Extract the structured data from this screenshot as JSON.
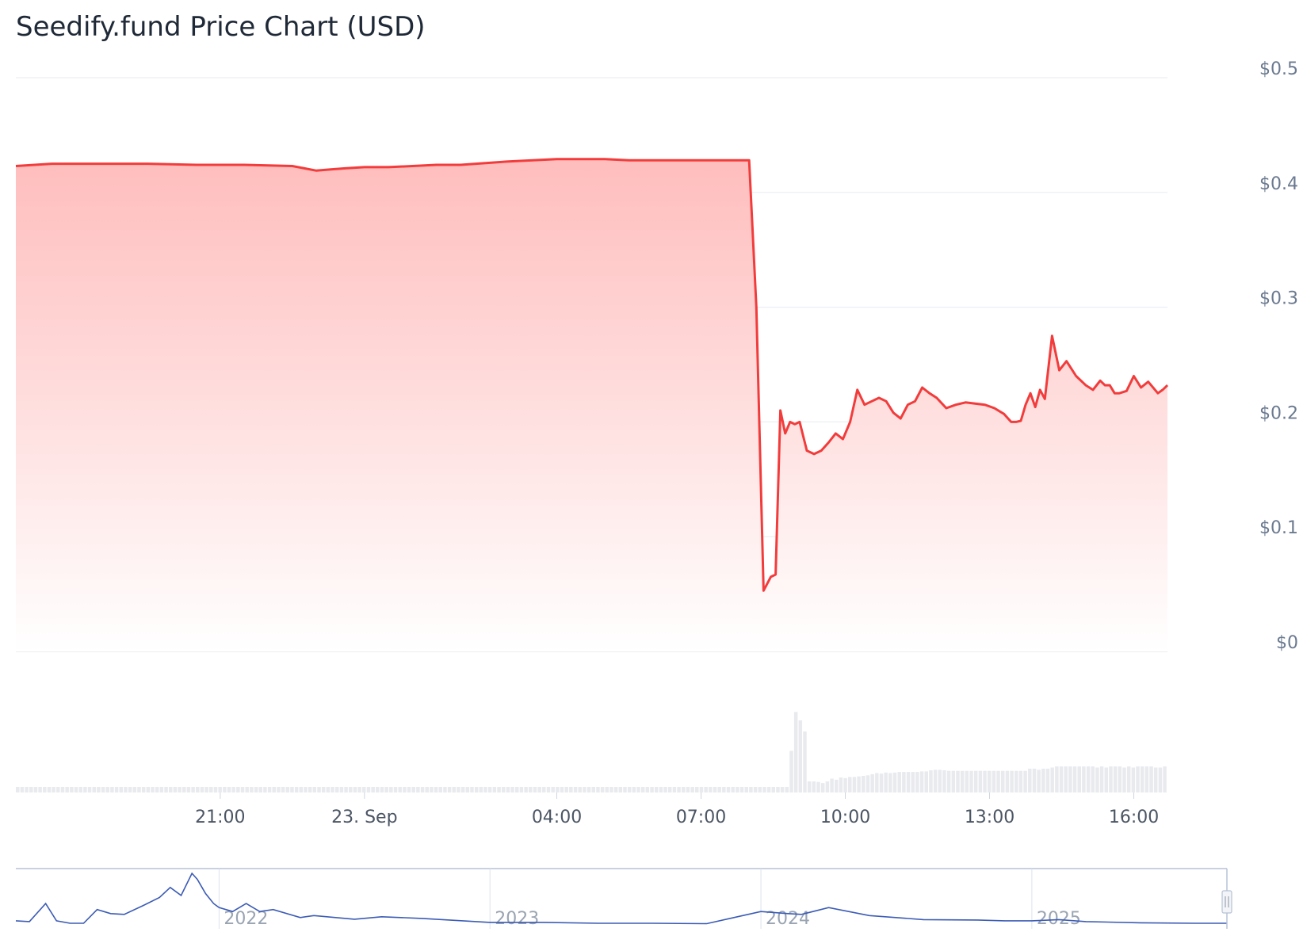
{
  "chart_data": {
    "type": "area",
    "title": "Seedify.fund Price Chart (USD)",
    "xlabel": "",
    "ylabel": "",
    "ylim": [
      0,
      0.5
    ],
    "y_ticks": [
      "$0",
      "$0.1",
      "$0.2",
      "$0.3",
      "$0.4",
      "$0.5"
    ],
    "y_tick_values": [
      0,
      0.1,
      0.2,
      0.3,
      0.4,
      0.5
    ],
    "x_ticks": [
      "21:00",
      "23. Sep",
      "04:00",
      "07:00",
      "10:00",
      "13:00",
      "16:00"
    ],
    "x_tick_hours": [
      21,
      24,
      28,
      31,
      34,
      37,
      40
    ],
    "x_range_hours": [
      16.75,
      40.7
    ],
    "grid": true,
    "legend": "none",
    "colors": {
      "line": "#f23c3c",
      "area_top": "#ffbdbd",
      "volume": "#e8eaee",
      "navigator": "#3b5bb5"
    },
    "series": [
      {
        "values_x_hours": [
          16.75,
          17.5,
          18.5,
          19.5,
          20.5,
          21.5,
          22.5,
          23.0,
          23.3,
          23.6,
          24.0,
          24.5,
          25.0,
          25.5,
          26.0,
          27.0,
          28.0,
          29.0,
          29.5,
          30.0,
          30.5,
          31.0,
          31.5,
          32.0,
          32.15,
          32.3,
          32.45,
          32.55,
          32.65,
          32.75,
          32.85,
          32.95,
          33.05,
          33.2,
          33.35,
          33.5,
          33.65,
          33.8,
          33.95,
          34.0,
          34.1,
          34.25,
          34.4,
          34.55,
          34.7,
          34.85,
          35.0,
          35.15,
          35.3,
          35.45,
          35.6,
          35.75,
          35.9,
          36.1,
          36.3,
          36.5,
          36.7,
          36.9,
          37.1,
          37.3,
          37.45,
          37.55,
          37.65,
          37.75,
          37.85,
          37.95,
          38.05,
          38.15,
          38.3,
          38.45,
          38.6,
          38.8,
          39.0,
          39.15,
          39.3,
          39.4,
          39.5,
          39.6,
          39.7,
          39.85,
          40.0,
          40.15,
          40.3,
          40.5,
          40.6,
          40.7
        ],
        "values": [
          0.423,
          0.425,
          0.425,
          0.425,
          0.424,
          0.424,
          0.423,
          0.419,
          0.42,
          0.421,
          0.422,
          0.422,
          0.423,
          0.424,
          0.424,
          0.427,
          0.429,
          0.429,
          0.428,
          0.428,
          0.428,
          0.428,
          0.428,
          0.428,
          0.3,
          0.053,
          0.065,
          0.067,
          0.21,
          0.19,
          0.2,
          0.198,
          0.2,
          0.175,
          0.172,
          0.175,
          0.182,
          0.19,
          0.185,
          0.19,
          0.2,
          0.228,
          0.215,
          0.218,
          0.221,
          0.218,
          0.208,
          0.203,
          0.215,
          0.218,
          0.23,
          0.225,
          0.221,
          0.212,
          0.215,
          0.217,
          0.216,
          0.215,
          0.212,
          0.207,
          0.2,
          0.2,
          0.201,
          0.215,
          0.225,
          0.213,
          0.228,
          0.22,
          0.275,
          0.245,
          0.253,
          0.24,
          0.232,
          0.228,
          0.236,
          0.232,
          0.232,
          0.225,
          0.225,
          0.227,
          0.24,
          0.23,
          0.235,
          0.225,
          0.228,
          0.232
        ]
      }
    ],
    "volume_relative": [
      1,
      1,
      1,
      1,
      1,
      1,
      1,
      1,
      1,
      1,
      1,
      1,
      1,
      1,
      1,
      1,
      1,
      1,
      1,
      1,
      1,
      1,
      1,
      1,
      1,
      1,
      1,
      1,
      1,
      1,
      1,
      1,
      1,
      1,
      1,
      1,
      1,
      1,
      1,
      1,
      1,
      1,
      1,
      1,
      1,
      1,
      1,
      1,
      1,
      1,
      1,
      1,
      1,
      1,
      1,
      1,
      1,
      1,
      1,
      1,
      1,
      1,
      1,
      1,
      1,
      1,
      1,
      1,
      1,
      1,
      1,
      1,
      1,
      1,
      1,
      1,
      1,
      1,
      1,
      1,
      1,
      1,
      1,
      1,
      1,
      1,
      1,
      1,
      1,
      1,
      1,
      1,
      1,
      1,
      1,
      1,
      1,
      1,
      1,
      1,
      1,
      1,
      1,
      1,
      1,
      1,
      1,
      1,
      1,
      1,
      1,
      1,
      1,
      1,
      1,
      1,
      1,
      1,
      1,
      1,
      1,
      1,
      1,
      1,
      1,
      1,
      1,
      1,
      1,
      1,
      1,
      1,
      1,
      1,
      1,
      1,
      1,
      1,
      1,
      1,
      1,
      1,
      1,
      1,
      1,
      1,
      1,
      1,
      1,
      1,
      1,
      1,
      1,
      1,
      1,
      1,
      1,
      1,
      1,
      1,
      1,
      1,
      1,
      1,
      1,
      1,
      1,
      1,
      1,
      1,
      1,
      1,
      7.5,
      14.5,
      13,
      11,
      2,
      2,
      1.9,
      1.7,
      2,
      2.5,
      2.3,
      2.7,
      2.6,
      2.8,
      2.8,
      2.9,
      3,
      3.1,
      3.3,
      3.5,
      3.4,
      3.6,
      3.5,
      3.6,
      3.7,
      3.7,
      3.7,
      3.7,
      3.7,
      3.8,
      3.8,
      4,
      4.1,
      4.1,
      4,
      3.9,
      3.9,
      3.9,
      3.9,
      3.9,
      3.9,
      3.9,
      3.9,
      3.9,
      3.9,
      3.9,
      3.9,
      3.9,
      3.9,
      3.9,
      3.9,
      3.9,
      3.9,
      4.3,
      4.3,
      4.1,
      4.3,
      4.3,
      4.5,
      4.7,
      4.7,
      4.7,
      4.7,
      4.7,
      4.7,
      4.7,
      4.7,
      4.7,
      4.5,
      4.7,
      4.5,
      4.7,
      4.7,
      4.7,
      4.5,
      4.7,
      4.5,
      4.7,
      4.7,
      4.7,
      4.7,
      4.5,
      4.5,
      4.7
    ],
    "navigator": {
      "labels": [
        "2022",
        "2023",
        "2024",
        "2025"
      ],
      "label_years": [
        2022,
        2023,
        2024,
        2025
      ],
      "range_years": [
        2021.25,
        2025.72
      ],
      "years": [
        2021.25,
        2021.3,
        2021.36,
        2021.4,
        2021.45,
        2021.5,
        2021.55,
        2021.6,
        2021.65,
        2021.72,
        2021.78,
        2021.82,
        2021.86,
        2021.9,
        2021.92,
        2021.95,
        2021.98,
        2022.0,
        2022.05,
        2022.1,
        2022.15,
        2022.2,
        2022.3,
        2022.35,
        2022.5,
        2022.6,
        2022.75,
        2022.9,
        2023.0,
        2023.2,
        2023.4,
        2023.6,
        2023.8,
        2023.9,
        2024.0,
        2024.1,
        2024.15,
        2024.25,
        2024.4,
        2024.6,
        2024.8,
        2024.9,
        2025.0,
        2025.1,
        2025.2,
        2025.4,
        2025.6,
        2025.72
      ],
      "values": [
        0.12,
        0.1,
        0.55,
        0.12,
        0.06,
        0.06,
        0.4,
        0.3,
        0.28,
        0.5,
        0.7,
        0.95,
        0.75,
        1.3,
        1.15,
        0.8,
        0.55,
        0.45,
        0.35,
        0.55,
        0.35,
        0.4,
        0.2,
        0.25,
        0.16,
        0.22,
        0.18,
        0.12,
        0.08,
        0.08,
        0.06,
        0.06,
        0.05,
        0.2,
        0.35,
        0.3,
        0.28,
        0.45,
        0.25,
        0.15,
        0.14,
        0.12,
        0.12,
        0.15,
        0.1,
        0.07,
        0.06,
        0.06
      ]
    }
  }
}
